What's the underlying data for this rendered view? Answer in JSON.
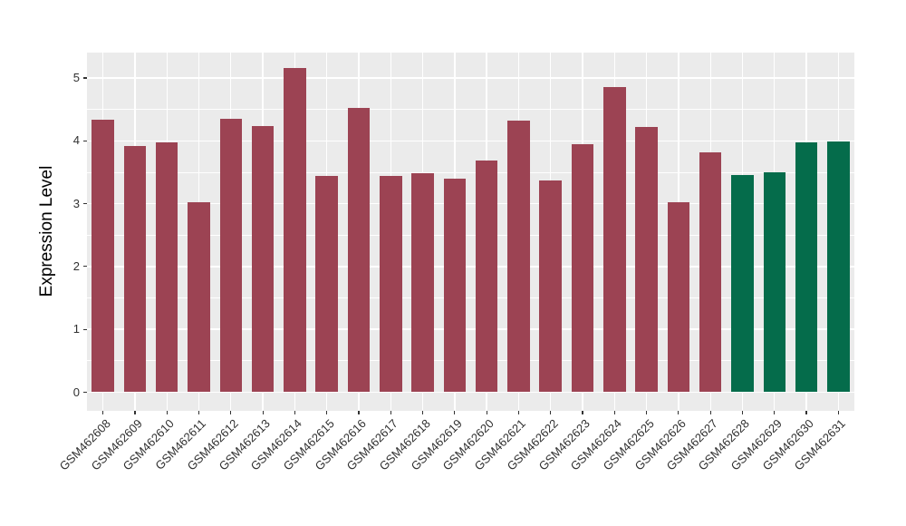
{
  "chart_data": {
    "type": "bar",
    "title": "",
    "xlabel": "",
    "ylabel": "Expression Level",
    "categories": [
      "GSM462608",
      "GSM462609",
      "GSM462610",
      "GSM462611",
      "GSM462612",
      "GSM462613",
      "GSM462614",
      "GSM462615",
      "GSM462616",
      "GSM462617",
      "GSM462618",
      "GSM462619",
      "GSM462620",
      "GSM462621",
      "GSM462622",
      "GSM462623",
      "GSM462624",
      "GSM462625",
      "GSM462626",
      "GSM462627",
      "GSM462628",
      "GSM462629",
      "GSM462630",
      "GSM462631"
    ],
    "values": [
      4.33,
      3.92,
      3.97,
      3.03,
      4.35,
      4.24,
      5.16,
      3.44,
      4.53,
      3.44,
      3.49,
      3.4,
      3.69,
      4.32,
      3.37,
      3.95,
      4.86,
      4.22,
      3.03,
      3.82,
      3.45,
      3.5,
      3.97,
      3.99
    ],
    "bar_color_groups": [
      "maroon",
      "maroon",
      "maroon",
      "maroon",
      "maroon",
      "maroon",
      "maroon",
      "maroon",
      "maroon",
      "maroon",
      "maroon",
      "maroon",
      "maroon",
      "maroon",
      "maroon",
      "maroon",
      "maroon",
      "maroon",
      "maroon",
      "maroon",
      "green",
      "green",
      "green",
      "green"
    ],
    "colors": {
      "maroon": "#9C4353",
      "green": "#056C4B"
    },
    "yticks": [
      0,
      1,
      2,
      3,
      4,
      5
    ],
    "ylim": [
      0,
      5.4
    ],
    "x_tick_label_rotation_deg": 45,
    "legend_position": "none",
    "grid": {
      "panel_bg": "#EBEBEB",
      "major_color": "#FFFFFF",
      "minor_color": "#FFFFFF"
    }
  },
  "style": {
    "background": "#FFFFFF",
    "axis_text_color": "#303030",
    "axis_title_color": "#000000",
    "tick_mark_color": "#333333"
  }
}
